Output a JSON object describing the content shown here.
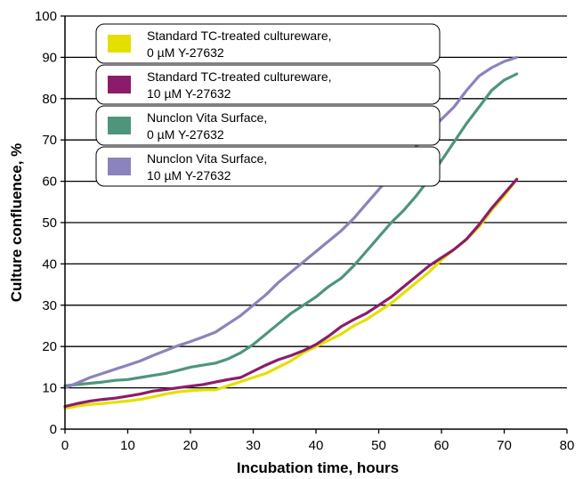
{
  "chart_data": {
    "type": "line",
    "title": "",
    "xlabel": "Incubation time, hours",
    "ylabel": "Culture confluence, %",
    "xlim": [
      0,
      80
    ],
    "ylim": [
      0,
      100
    ],
    "xticks": [
      0,
      10,
      20,
      30,
      40,
      50,
      60,
      70,
      80
    ],
    "yticks": [
      0,
      10,
      20,
      30,
      40,
      50,
      60,
      70,
      80,
      90,
      100
    ],
    "grid": "horizontal",
    "legend_position": "top-left",
    "series": [
      {
        "name": "Standard TC-treated cultureware,",
        "name_line2": "0 µM Y-27632",
        "color": "#e3e000",
        "x": [
          0,
          2,
          4,
          6,
          8,
          10,
          12,
          14,
          16,
          18,
          20,
          22,
          24,
          26,
          28,
          30,
          32,
          34,
          36,
          38,
          40,
          42,
          44,
          46,
          48,
          50,
          52,
          54,
          56,
          58,
          60,
          62,
          64,
          66,
          68,
          70,
          72
        ],
        "y": [
          5,
          5.6,
          6,
          6.2,
          6.5,
          6.8,
          7.2,
          7.8,
          8.5,
          9,
          9.3,
          9.5,
          9.5,
          10.5,
          11.5,
          12.5,
          13.5,
          15,
          16.5,
          18.5,
          20,
          21.5,
          23,
          25,
          26.5,
          28.5,
          30.5,
          33,
          35.5,
          38,
          41,
          43.5,
          46,
          49,
          53,
          56.5,
          60.5
        ]
      },
      {
        "name": "Standard TC-treated cultureware,",
        "name_line2": "10 µM Y-27632",
        "color": "#8c1c6a",
        "x": [
          0,
          2,
          4,
          6,
          8,
          10,
          12,
          14,
          16,
          18,
          20,
          22,
          24,
          26,
          28,
          30,
          32,
          34,
          36,
          38,
          40,
          42,
          44,
          46,
          48,
          50,
          52,
          54,
          56,
          58,
          60,
          62,
          64,
          66,
          68,
          70,
          72
        ],
        "y": [
          5.5,
          6.2,
          6.8,
          7.2,
          7.5,
          8,
          8.5,
          9.2,
          9.6,
          10,
          10.4,
          10.8,
          11.4,
          12,
          12.5,
          14,
          15.5,
          16.8,
          17.8,
          19,
          20.5,
          22.5,
          24.8,
          26.5,
          28,
          30,
          32,
          34.5,
          37,
          39.5,
          41.5,
          43.5,
          46,
          49.5,
          53.5,
          57,
          60.5
        ]
      },
      {
        "name": "Nunclon Vita Surface,",
        "name_line2": "0 µM Y-27632",
        "color": "#4e957b",
        "x": [
          0,
          2,
          4,
          6,
          8,
          10,
          12,
          14,
          16,
          18,
          20,
          22,
          24,
          26,
          28,
          30,
          32,
          34,
          36,
          38,
          40,
          42,
          44,
          46,
          48,
          50,
          52,
          54,
          56,
          58,
          60,
          62,
          64,
          66,
          68,
          70,
          72
        ],
        "y": [
          10.5,
          10.8,
          11.1,
          11.4,
          11.8,
          12,
          12.5,
          13,
          13.5,
          14.2,
          15,
          15.5,
          16,
          17,
          18.5,
          20.5,
          23,
          25.5,
          28,
          30,
          32,
          34.5,
          36.5,
          39.5,
          43,
          46.5,
          50,
          53,
          56.5,
          60.5,
          65,
          69.5,
          74,
          78,
          82,
          84.5,
          86
        ]
      },
      {
        "name": "Nunclon Vita Surface,",
        "name_line2": "10 µM Y-27632",
        "color": "#8b83bb",
        "x": [
          0,
          2,
          4,
          6,
          8,
          10,
          12,
          14,
          16,
          18,
          20,
          22,
          24,
          26,
          28,
          30,
          32,
          34,
          36,
          38,
          40,
          42,
          44,
          46,
          48,
          50,
          52,
          54,
          56,
          58,
          60,
          62,
          64,
          66,
          68,
          70,
          72
        ],
        "y": [
          10,
          11.2,
          12.5,
          13.5,
          14.5,
          15.5,
          16.5,
          17.8,
          19,
          20.2,
          21.2,
          22.3,
          23.5,
          25.5,
          27.5,
          30,
          32.5,
          35.5,
          38,
          40.5,
          43,
          45.5,
          48,
          51,
          54.5,
          58,
          61.5,
          65,
          68.5,
          72,
          75,
          78,
          82,
          85.5,
          87.5,
          89,
          90
        ]
      }
    ]
  }
}
